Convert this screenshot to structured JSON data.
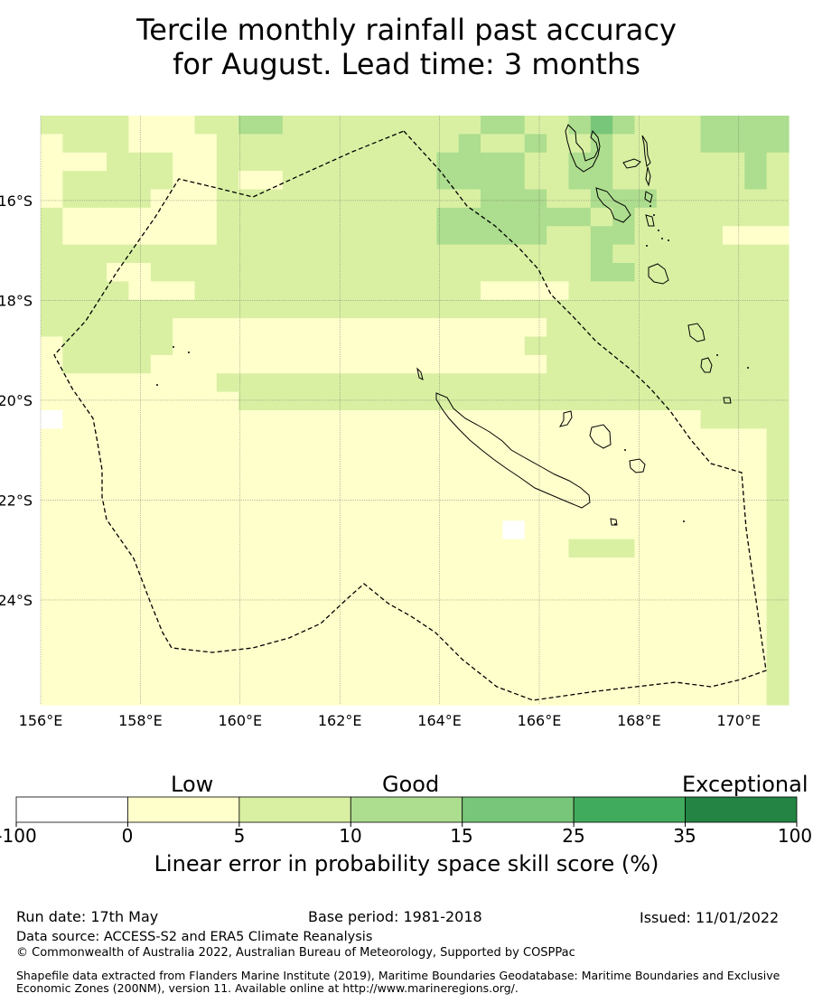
{
  "title": {
    "line1": "Tercile monthly rainfall past accuracy",
    "line2": "for August. Lead time: 3 months"
  },
  "map": {
    "lon_labels": [
      "156°E",
      "158°E",
      "160°E",
      "162°E",
      "164°E",
      "166°E",
      "168°E",
      "170°E"
    ],
    "lat_labels": [
      "16°S",
      "18°S",
      "20°S",
      "22°S",
      "24°S"
    ],
    "lon_range": [
      156,
      171
    ],
    "lat_range": [
      -14.3,
      -26.1
    ],
    "cell_deg": 0.83,
    "boundary_style": "dashed",
    "palette": {
      "w": "#ffffff",
      "a": "#ffffcc",
      "b": "#d9f0a3",
      "c": "#addd8e",
      "d": "#78c679",
      "e": "#41ab5d",
      "f": "#238443"
    },
    "grid_rows": [
      "bbbbaaabbccbbbbbbbbbccbbcdcbbbcccc",
      "abbbaaaabbbbbbbbbbbcbbcbbcbbbbcccc",
      "aaabbbaabbbbbbbbbbccccbbccbbbbbbcb",
      "abbbbbaabaabbbbbbbccccbbccbbbbbbcb",
      "abbbbaaabbbbbbbbbbbbcccbbcccbbbbbb",
      "baaaaaaabbbbbbbbbbcccccccbcbbbbbbb",
      "baaaaaaabbbbbbbbbbcccccbbccbbbbaaa",
      "bbbbbbbbbbbbbbbbbbbbbbbbbcbbbbbbbb",
      "bbbaabbbbbbbbbbbbbbbbbbbbccbbbbbbb",
      "bbbbaaabbbbbbbbbbbbbaaaabbbbbbbbbb",
      "bbbbbbbbbbbbbbbbbbbbbbbbbbbbbbbbbb",
      "bbbbbbaaaaaaaaaaaaaaaaabbbbbbbbbbb",
      "abbbbbaaaaaaaaaaaaaaaabbbbbbbbbbbb",
      "abbbbaaaaaaaaaaaaaaaaaabbbbbbbbbbb",
      "aaaaaaaabbbbbbbbbbbbbbbbbbbbbbbbbb",
      "aaaaaaaaabbbbbbbbbbbbbbbbbbbbbbbbb",
      "waaaaaaaaaaaaaaaaaaaaaaaaaaaaabbbb",
      "aaaaaaaaaaaaaaaaaaaaaaaaaaaaaaaaab",
      "aaaaaaaaaaaaaaaaaaaaaaaaaaaaaaaaab",
      "aaaaaaaaaaaaaaaaaaaaaaaaaaaaaaaaab",
      "aaaaaaaaaaaaaaaaaaaaaaaaaaaaaaaaab",
      "aaaaaaaaaaaaaaaaaaaaaaaaaaaaaaaaab",
      "aaaaaaaaaaaaaaaaaaaaawaaaaaaaaaaab",
      "aaaaaaaaaaaaaaaaaaaaaaaabbbaaaaaab",
      "aaaaaaaaaaaaaaaaaaaaaaaaaaaaaaaaab",
      "aaaaaaaaaaaaaaaaaaaaaaaaaaaaaaaaab",
      "aaaaaaaaaaaaaaaaaaaaaaaaaaaaaaaaab",
      "aaaaaaaaaaaaaaaaaaaaaaaaaaaaaaaaab",
      "aaaaaaaaaaaaaaaaaaaaaaaaaaaaaaaaab",
      "aaaaaaaaaaaaaaaaaaaaaaaaaaaaaaaaab",
      "aaaaaaaaaaaaaaaaaaaaaaaaaaaaaaaaab",
      "aaaaaaaaaaaaaaaaaaaaaaaaaaaaaaaaab"
    ]
  },
  "colorbar": {
    "categories": [
      "Low",
      "Good",
      "Exceptional"
    ],
    "ticks": [
      "-100",
      "0",
      "5",
      "10",
      "15",
      "25",
      "35",
      "100"
    ],
    "colors": [
      "#ffffff",
      "#ffffcc",
      "#d9f0a3",
      "#addd8e",
      "#78c679",
      "#41ab5d",
      "#238443"
    ],
    "label": "Linear error in probability space skill score (%)"
  },
  "footer": {
    "run_date": "Run date: 17th May",
    "base_period": "Base period: 1981-2018",
    "issued": "Issued: 11/01/2022",
    "data_source": "Data source: ACCESS-S2 and ERA5 Climate Reanalysis",
    "copyright": "© Commonwealth of Australia 2022, Australian Bureau of Meteorology, Supported by COSPPac",
    "shapefile": "Shapefile data extracted from Flanders Marine Institute (2019), Maritime Boundaries Geodatabase: Maritime Boundaries and Exclusive Economic Zones (200NM), version 11. Available online at http://www.marineregions.org/."
  }
}
